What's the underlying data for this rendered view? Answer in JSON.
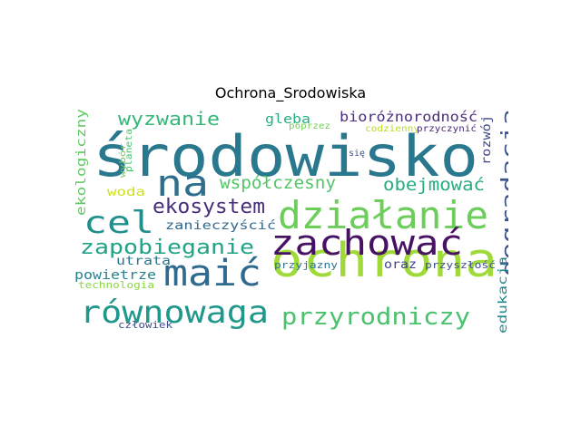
{
  "chart_data": {
    "type": "wordcloud",
    "title": "Ochrona_Srodowiska",
    "colormap": "viridis",
    "words": [
      {
        "text": "środowisko",
        "color": "#2a788e"
      },
      {
        "text": "ochrona",
        "color": "#a0da39"
      },
      {
        "text": "działanie",
        "color": "#6ccd5a"
      },
      {
        "text": "zachować",
        "color": "#471164"
      },
      {
        "text": "na",
        "color": "#2e6f8e"
      },
      {
        "text": "cel",
        "color": "#21908d"
      },
      {
        "text": "maić",
        "color": "#306a8e"
      },
      {
        "text": "równowaga",
        "color": "#1f988b"
      },
      {
        "text": "przyrodniczy",
        "color": "#4ac16d"
      },
      {
        "text": "degradacja",
        "color": "#3b528b"
      },
      {
        "text": "zapobieganie",
        "color": "#20a386"
      },
      {
        "text": "ekosystem",
        "color": "#472d7b"
      },
      {
        "text": "współczesny",
        "color": "#54c568"
      },
      {
        "text": "obejmować",
        "color": "#26ad81"
      },
      {
        "text": "wyzwanie",
        "color": "#35b779"
      },
      {
        "text": "bioróżnorodność",
        "color": "#472f7d"
      },
      {
        "text": "gleba",
        "color": "#29af7f"
      },
      {
        "text": "ekologiczny",
        "color": "#5ec962"
      },
      {
        "text": "rozwój",
        "color": "#3f4788"
      },
      {
        "text": "woda",
        "color": "#d0e11c"
      },
      {
        "text": "zanieczyścić",
        "color": "#31688e"
      },
      {
        "text": "utrata",
        "color": "#2a778e"
      },
      {
        "text": "powietrze",
        "color": "#25848e"
      },
      {
        "text": "oraz",
        "color": "#414487"
      },
      {
        "text": "przyjazny",
        "color": "#2c728e"
      },
      {
        "text": "przyszłość",
        "color": "#3d4e8a"
      },
      {
        "text": "edukacja",
        "color": "#23898e"
      },
      {
        "text": "technologia",
        "color": "#8bd646"
      },
      {
        "text": "kluczowy",
        "color": "#31688e"
      },
      {
        "text": "człowiek",
        "color": "#3e4a89"
      },
      {
        "text": "poprzez",
        "color": "#73d056"
      },
      {
        "text": "codzienny",
        "color": "#b5de2b"
      },
      {
        "text": "przyczynić",
        "color": "#482878"
      },
      {
        "text": "się",
        "color": "#3e4c8a"
      },
      {
        "text": "wybór",
        "color": "#6ccd5a"
      },
      {
        "text": "planeta",
        "color": "#4ac16d"
      }
    ]
  }
}
